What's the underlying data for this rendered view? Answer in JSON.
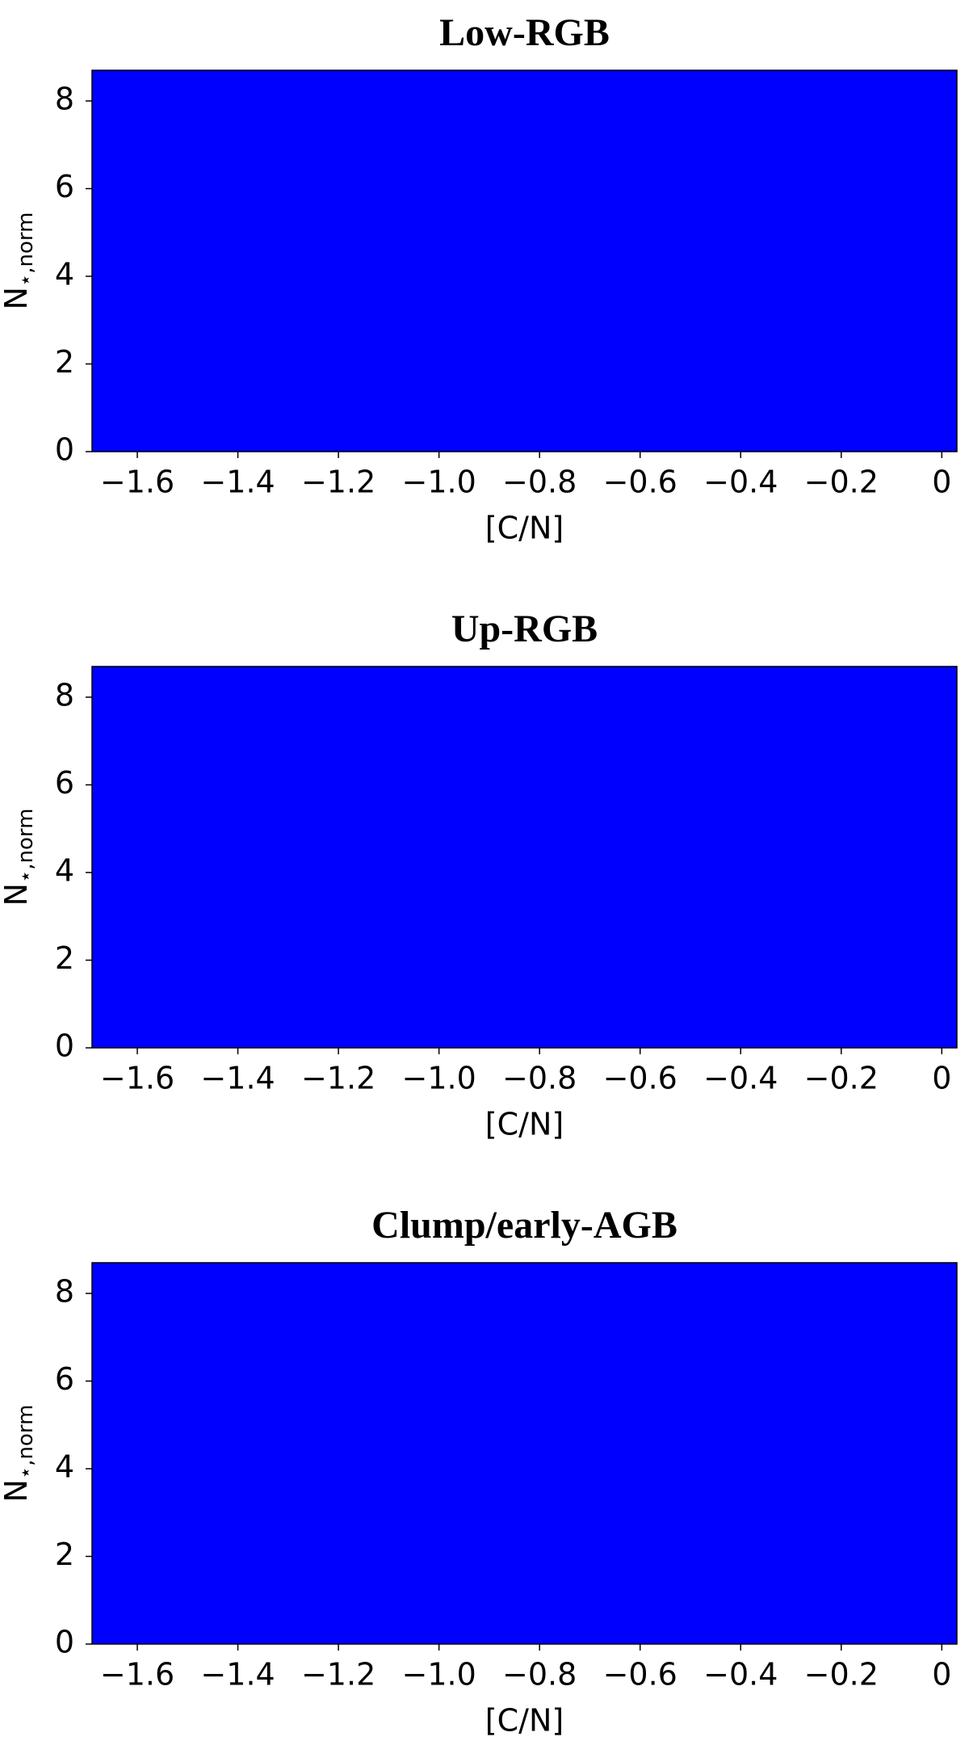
{
  "chart_data": [
    {
      "type": "area",
      "title": "Low-RGB",
      "xlabel": "[C/N]",
      "ylabel": [
        "N",
        "⋆,norm"
      ],
      "fill_color": "#0000ff",
      "xlim": [
        -1.69,
        0.03
      ],
      "xticks": [
        {
          "value": -1.6,
          "label": "−1.6"
        },
        {
          "value": -1.4,
          "label": "−1.4"
        },
        {
          "value": -1.2,
          "label": "−1.2"
        },
        {
          "value": -1.0,
          "label": "−1.0"
        },
        {
          "value": -0.8,
          "label": "−0.8"
        },
        {
          "value": -0.6,
          "label": "−0.6"
        },
        {
          "value": -0.4,
          "label": "−0.4"
        },
        {
          "value": -0.2,
          "label": "−0.2"
        },
        0
      ],
      "ylim": [
        0,
        8.7
      ],
      "yticks": [
        0,
        2,
        4,
        6,
        8
      ]
    },
    {
      "type": "area",
      "title": "Up-RGB",
      "xlabel": "[C/N]",
      "ylabel": [
        "N",
        "⋆,norm"
      ],
      "fill_color": "#0000ff",
      "xlim": [
        -1.69,
        0.03
      ],
      "xticks": [
        {
          "value": -1.6,
          "label": "−1.6"
        },
        {
          "value": -1.4,
          "label": "−1.4"
        },
        {
          "value": -1.2,
          "label": "−1.2"
        },
        {
          "value": -1.0,
          "label": "−1.0"
        },
        {
          "value": -0.8,
          "label": "−0.8"
        },
        {
          "value": -0.6,
          "label": "−0.6"
        },
        {
          "value": -0.4,
          "label": "−0.4"
        },
        {
          "value": -0.2,
          "label": "−0.2"
        },
        0
      ],
      "ylim": [
        0,
        8.7
      ],
      "yticks": [
        0,
        2,
        4,
        6,
        8
      ]
    },
    {
      "type": "area",
      "title": "Clump/early-AGB",
      "xlabel": "[C/N]",
      "ylabel": [
        "N",
        "⋆,norm"
      ],
      "fill_color": "#0000ff",
      "xlim": [
        -1.69,
        0.03
      ],
      "xticks": [
        {
          "value": -1.6,
          "label": "−1.6"
        },
        {
          "value": -1.4,
          "label": "−1.4"
        },
        {
          "value": -1.2,
          "label": "−1.2"
        },
        {
          "value": -1.0,
          "label": "−1.0"
        },
        {
          "value": -0.8,
          "label": "−0.8"
        },
        {
          "value": -0.6,
          "label": "−0.6"
        },
        {
          "value": -0.4,
          "label": "−0.4"
        },
        {
          "value": -0.2,
          "label": "−0.2"
        },
        0
      ],
      "ylim": [
        0,
        8.7
      ],
      "yticks": [
        0,
        2,
        4,
        6,
        8
      ]
    }
  ]
}
